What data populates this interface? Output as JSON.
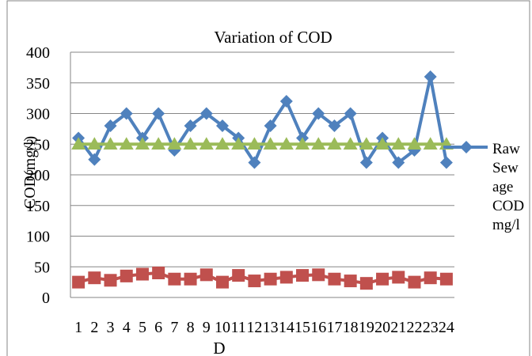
{
  "chart_data": {
    "type": "line",
    "title": "Variation of COD",
    "xlabel": "D",
    "ylabel": "COD(mg/l)",
    "ylim": [
      0,
      400
    ],
    "yticks": [
      0,
      50,
      100,
      150,
      200,
      250,
      300,
      350,
      400
    ],
    "grid": true,
    "legend_position": "right",
    "categories": [
      "1",
      "2",
      "3",
      "4",
      "5",
      "6",
      "7",
      "8",
      "9",
      "10",
      "11",
      "12",
      "13",
      "14",
      "15",
      "16",
      "17",
      "18",
      "19",
      "20",
      "21",
      "22",
      "23",
      "24"
    ],
    "series": [
      {
        "name": "Raw Sew age COD mg/l",
        "legend_lines": [
          "Raw",
          "Sew",
          "age",
          "COD",
          "mg/l"
        ],
        "color": "#4f81bd",
        "marker": "diamond",
        "values": [
          260,
          225,
          280,
          300,
          260,
          300,
          240,
          280,
          300,
          280,
          260,
          220,
          280,
          320,
          260,
          300,
          280,
          300,
          220,
          260,
          220,
          240,
          360,
          220
        ]
      },
      {
        "color": "#c0504d",
        "marker": "square",
        "values": [
          25,
          32,
          28,
          35,
          38,
          40,
          30,
          30,
          37,
          25,
          36,
          27,
          30,
          33,
          36,
          37,
          30,
          27,
          23,
          30,
          33,
          25,
          32,
          30
        ]
      },
      {
        "color": "#9bbb59",
        "marker": "triangle",
        "values": [
          250,
          250,
          250,
          250,
          250,
          250,
          250,
          250,
          250,
          250,
          250,
          250,
          250,
          250,
          250,
          250,
          250,
          250,
          250,
          250,
          250,
          250,
          250,
          250
        ]
      }
    ]
  }
}
